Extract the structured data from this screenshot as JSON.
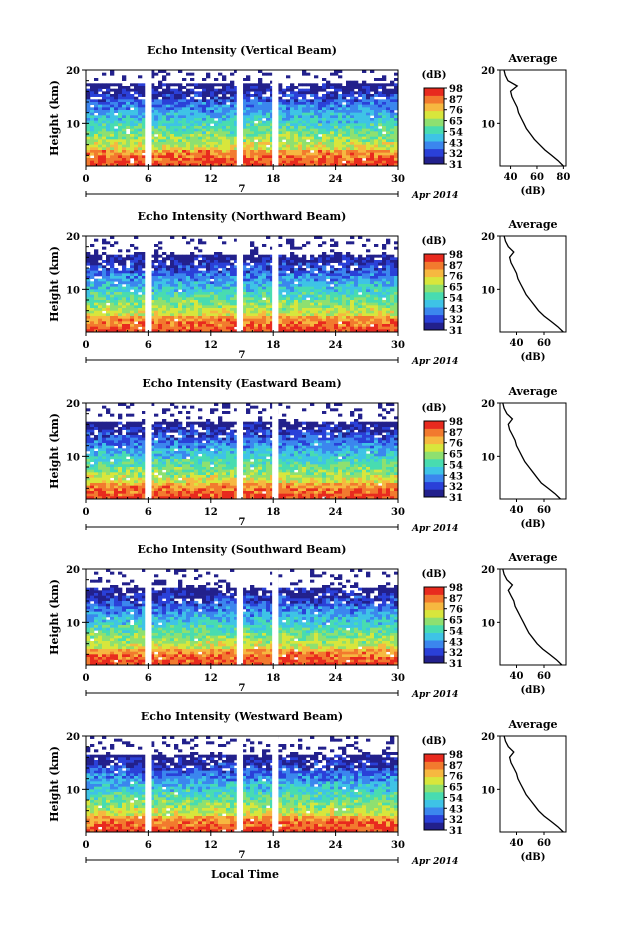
{
  "figure": {
    "xlabel": "Local Time",
    "ylabel": "Height (km)",
    "date_label": "Apr 2014",
    "day_label": "7",
    "colorbar_unit": "(dB)",
    "colorbar_ticks": [
      31,
      32,
      43,
      54,
      65,
      76,
      87,
      98
    ],
    "colorbar_tick_labels": [
      "31",
      "32",
      "43",
      "54",
      "65",
      "76",
      "87",
      "98"
    ],
    "average_title": "Average",
    "average_xlabel": "(dB)",
    "colormap": [
      "#22208c",
      "#2a40d8",
      "#3b86ee",
      "#3ec3e6",
      "#48dcb0",
      "#8ee070",
      "#d8e63c",
      "#f6b840",
      "#f27a2e",
      "#e82a1e"
    ]
  },
  "chart_data": [
    {
      "type": "heatmap",
      "title": "Echo Intensity (Vertical Beam)",
      "x_ticks": [
        0,
        6,
        12,
        18,
        24,
        30
      ],
      "x_tick_labels": [
        "0",
        "6",
        "12",
        "18",
        "24",
        "30"
      ],
      "xlim": [
        0,
        30
      ],
      "y_ticks": [
        10,
        20
      ],
      "y_tick_labels": [
        "10",
        "20"
      ],
      "ylim": [
        2,
        20
      ],
      "data_gaps_hours": [
        [
          5.7,
          6.3
        ],
        [
          14.5,
          15.1
        ],
        [
          17.9,
          18.5
        ]
      ],
      "intensity_top_km": 17.5,
      "average_profile": {
        "x_ticks": [
          40,
          60,
          80
        ],
        "x_tick_labels": [
          "40",
          "60",
          "80"
        ],
        "xlim": [
          32,
          82
        ],
        "height_km": [
          2,
          3,
          4,
          5,
          6,
          7,
          8,
          9,
          10,
          11,
          12,
          13,
          14,
          15,
          16,
          17,
          18,
          19,
          20
        ],
        "intensity_db": [
          80,
          76,
          71,
          66,
          62,
          58,
          55,
          52,
          50,
          48,
          46,
          45,
          43,
          41,
          40,
          45,
          38,
          36,
          35
        ]
      }
    },
    {
      "type": "heatmap",
      "title": "Echo Intensity (Northward Beam)",
      "x_ticks": [
        0,
        6,
        12,
        18,
        24,
        30
      ],
      "x_tick_labels": [
        "0",
        "6",
        "12",
        "18",
        "24",
        "30"
      ],
      "xlim": [
        0,
        30
      ],
      "y_ticks": [
        10,
        20
      ],
      "y_tick_labels": [
        "10",
        "20"
      ],
      "ylim": [
        2,
        20
      ],
      "data_gaps_hours": [
        [
          5.7,
          6.3
        ],
        [
          14.5,
          15.1
        ],
        [
          17.9,
          18.5
        ]
      ],
      "intensity_top_km": 16.5,
      "average_profile": {
        "x_ticks": [
          40,
          60
        ],
        "x_tick_labels": [
          "40",
          "60"
        ],
        "xlim": [
          28,
          76
        ],
        "height_km": [
          2,
          3,
          4,
          5,
          6,
          7,
          8,
          9,
          10,
          11,
          12,
          13,
          14,
          15,
          16,
          17,
          18,
          19,
          20
        ],
        "intensity_db": [
          74,
          70,
          65,
          60,
          56,
          53,
          50,
          47,
          45,
          43,
          41,
          40,
          38,
          36,
          35,
          38,
          34,
          32,
          31
        ]
      }
    },
    {
      "type": "heatmap",
      "title": "Echo Intensity (Eastward Beam)",
      "x_ticks": [
        0,
        6,
        12,
        18,
        24,
        30
      ],
      "x_tick_labels": [
        "0",
        "6",
        "12",
        "18",
        "24",
        "30"
      ],
      "xlim": [
        0,
        30
      ],
      "y_ticks": [
        10,
        20
      ],
      "y_tick_labels": [
        "10",
        "20"
      ],
      "ylim": [
        2,
        20
      ],
      "data_gaps_hours": [
        [
          5.7,
          6.3
        ],
        [
          14.5,
          15.1
        ],
        [
          17.9,
          18.5
        ]
      ],
      "intensity_top_km": 16.5,
      "average_profile": {
        "x_ticks": [
          40,
          60
        ],
        "x_tick_labels": [
          "40",
          "60"
        ],
        "xlim": [
          28,
          76
        ],
        "height_km": [
          2,
          3,
          4,
          5,
          6,
          7,
          8,
          9,
          10,
          11,
          12,
          13,
          14,
          15,
          16,
          17,
          18,
          19,
          20
        ],
        "intensity_db": [
          72,
          68,
          63,
          58,
          55,
          52,
          49,
          46,
          44,
          42,
          40,
          39,
          37,
          35,
          34,
          37,
          33,
          31,
          30
        ]
      }
    },
    {
      "type": "heatmap",
      "title": "Echo Intensity (Southward Beam)",
      "x_ticks": [
        0,
        6,
        12,
        18,
        24,
        30
      ],
      "x_tick_labels": [
        "0",
        "6",
        "12",
        "18",
        "24",
        "30"
      ],
      "xlim": [
        0,
        30
      ],
      "y_ticks": [
        10,
        20
      ],
      "y_tick_labels": [
        "10",
        "20"
      ],
      "ylim": [
        2,
        20
      ],
      "data_gaps_hours": [
        [
          5.7,
          6.3
        ],
        [
          14.5,
          15.1
        ],
        [
          17.9,
          18.5
        ]
      ],
      "intensity_top_km": 16.5,
      "average_profile": {
        "x_ticks": [
          40,
          60
        ],
        "x_tick_labels": [
          "40",
          "60"
        ],
        "xlim": [
          28,
          76
        ],
        "height_km": [
          2,
          3,
          4,
          5,
          6,
          7,
          8,
          9,
          10,
          11,
          12,
          13,
          14,
          15,
          16,
          17,
          18,
          19,
          20
        ],
        "intensity_db": [
          73,
          69,
          64,
          59,
          55,
          52,
          49,
          47,
          45,
          43,
          41,
          39,
          38,
          36,
          34,
          37,
          33,
          31,
          30
        ]
      }
    },
    {
      "type": "heatmap",
      "title": "Echo Intensity (Westward Beam)",
      "x_ticks": [
        0,
        6,
        12,
        18,
        24,
        30
      ],
      "x_tick_labels": [
        "0",
        "6",
        "12",
        "18",
        "24",
        "30"
      ],
      "xlim": [
        0,
        30
      ],
      "y_ticks": [
        10,
        20
      ],
      "y_tick_labels": [
        "10",
        "20"
      ],
      "ylim": [
        2,
        20
      ],
      "data_gaps_hours": [
        [
          5.7,
          6.3
        ],
        [
          14.5,
          15.1
        ],
        [
          17.9,
          18.5
        ]
      ],
      "intensity_top_km": 16.5,
      "average_profile": {
        "x_ticks": [
          40,
          60
        ],
        "x_tick_labels": [
          "40",
          "60"
        ],
        "xlim": [
          28,
          76
        ],
        "height_km": [
          2,
          3,
          4,
          5,
          6,
          7,
          8,
          9,
          10,
          11,
          12,
          13,
          14,
          15,
          16,
          17,
          18,
          19,
          20
        ],
        "intensity_db": [
          74,
          70,
          65,
          60,
          56,
          53,
          50,
          47,
          45,
          43,
          41,
          40,
          38,
          36,
          35,
          38,
          34,
          32,
          31
        ]
      }
    }
  ]
}
